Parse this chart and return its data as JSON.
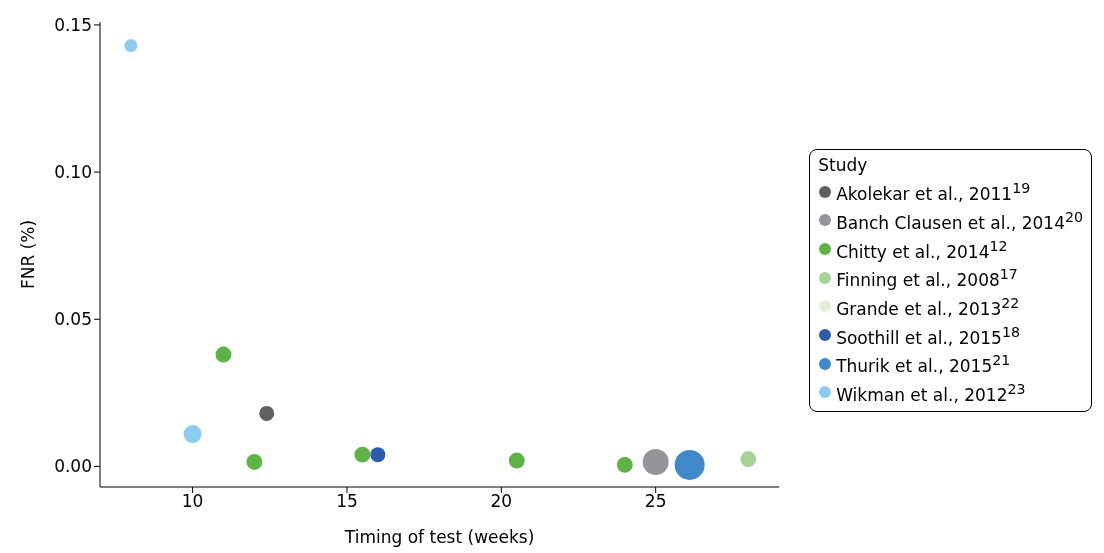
{
  "chart_data": {
    "type": "bubble",
    "xlabel": "Timing of test (weeks)",
    "ylabel": "FNR (%)",
    "legend_title": "Study",
    "legend": "right",
    "xlim": [
      7,
      29
    ],
    "xticks": [
      10,
      15,
      20,
      25
    ],
    "ylim": [
      -0.007,
      0.151
    ],
    "yticks": [
      {
        "value": 0,
        "label": "0.00"
      },
      0.05,
      {
        "value": 0.1,
        "label": "0.10"
      },
      0.15
    ],
    "series": [
      {
        "name": "Akolekar et al., 2011$^{19}$",
        "color": "#606060",
        "x": [
          12.4
        ],
        "values": [
          0.018
        ],
        "sizes": [
          0.25
        ]
      },
      {
        "name": "Banch Clausen et al., 2014$^{20}$",
        "color": "#939598",
        "x": [
          25
        ],
        "values": [
          0.0015
        ],
        "sizes": [
          0.75
        ]
      },
      {
        "name": "Chitty et al., 2014$^{12}$",
        "color": "#5db346",
        "x": [
          11,
          12,
          15.5,
          20.5,
          24
        ],
        "values": [
          0.038,
          0.0015,
          0.004,
          0.002,
          0.0005
        ],
        "sizes": [
          0.28,
          0.28,
          0.28,
          0.28,
          0.28
        ]
      },
      {
        "name": "Finning et al., 2008$^{17}$",
        "color": "#a8d396",
        "x": [
          28
        ],
        "values": [
          0.0025
        ],
        "sizes": [
          0.28
        ]
      },
      {
        "name": "Grande et al., 2013$^{22}$",
        "color": "#e1f0da"
      },
      {
        "name": "Soothill et al., 2015$^{18}$",
        "color": "#2e5caa",
        "x": [
          16
        ],
        "values": [
          0.004
        ],
        "sizes": [
          0.25
        ]
      },
      {
        "name": "Thurik et al., 2015$^{21}$",
        "color": "#3f89c9",
        "x": [
          26.1
        ],
        "values": [
          0.0005
        ],
        "sizes": [
          1
        ]
      },
      {
        "name": "Wikman et al., 2012$^{23}$",
        "color": "#8ecbf0",
        "x": [
          8,
          10
        ],
        "values": [
          0.143,
          0.011
        ],
        "sizes": [
          0.19,
          0.36
        ]
      }
    ]
  }
}
